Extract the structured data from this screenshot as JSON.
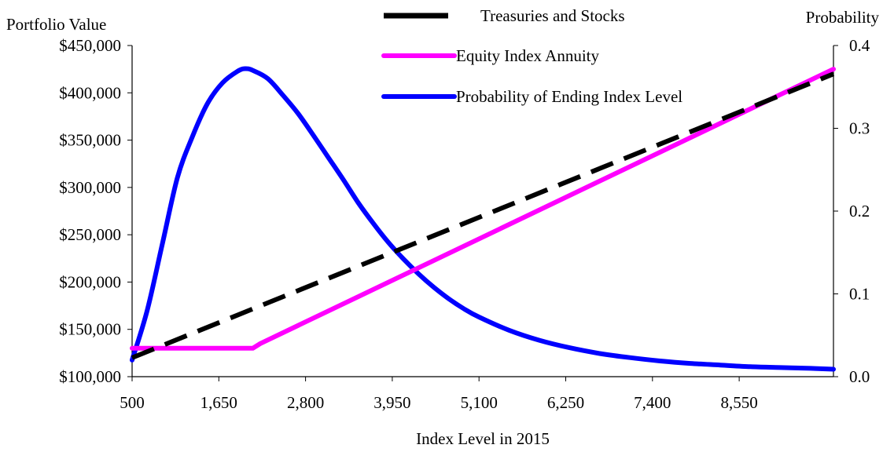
{
  "chart_data": {
    "type": "line",
    "xlabel": "Index Level in 2015",
    "ylabel_left": "Portfolio Value",
    "ylabel_right": "Probability",
    "x_ticks": [
      "500",
      "1,650",
      "2,800",
      "3,950",
      "5,100",
      "6,250",
      "7,400",
      "8,550"
    ],
    "x_tick_values": [
      500,
      1650,
      2800,
      3950,
      5100,
      6250,
      7400,
      8550
    ],
    "xlim": [
      500,
      9800
    ],
    "y_left_ticks": [
      "$100,000",
      "$150,000",
      "$200,000",
      "$250,000",
      "$300,000",
      "$350,000",
      "$400,000",
      "$450,000"
    ],
    "y_left_tick_values": [
      100000,
      150000,
      200000,
      250000,
      300000,
      350000,
      400000,
      450000
    ],
    "ylim_left": [
      100000,
      450000
    ],
    "y_right_ticks": [
      "0.0",
      "0.1",
      "0.2",
      "0.3",
      "0.4"
    ],
    "y_right_tick_values": [
      0,
      0.1,
      0.2,
      0.3,
      0.4
    ],
    "ylim_right": [
      0,
      0.4
    ],
    "grid": false,
    "legend_position": "top-center",
    "series": [
      {
        "name": "Treasuries and Stocks",
        "axis": "left",
        "color": "#000000",
        "style": "dashed",
        "x": [
          500,
          9800
        ],
        "y": [
          120000,
          420000
        ]
      },
      {
        "name": "Equity Index Annuity",
        "axis": "left",
        "color": "#ff00ff",
        "style": "solid",
        "x": [
          500,
          2100,
          2200,
          9800
        ],
        "y": [
          130000,
          130000,
          135000,
          425000
        ]
      },
      {
        "name": "Probability of Ending Index Level",
        "axis": "right",
        "color": "#0000ff",
        "style": "solid",
        "x": [
          500,
          700,
          900,
          1100,
          1300,
          1500,
          1700,
          1900,
          2000,
          2100,
          2300,
          2500,
          2700,
          2900,
          3100,
          3300,
          3500,
          3700,
          3900,
          4100,
          4300,
          4500,
          4700,
          4900,
          5100,
          5500,
          5900,
          6300,
          6700,
          7100,
          7500,
          7900,
          8300,
          8700,
          9100,
          9500,
          9800
        ],
        "y": [
          0.02,
          0.08,
          0.16,
          0.24,
          0.29,
          0.33,
          0.355,
          0.369,
          0.372,
          0.37,
          0.36,
          0.34,
          0.318,
          0.292,
          0.265,
          0.238,
          0.21,
          0.185,
          0.162,
          0.142,
          0.124,
          0.108,
          0.094,
          0.082,
          0.072,
          0.056,
          0.044,
          0.035,
          0.028,
          0.023,
          0.019,
          0.016,
          0.014,
          0.012,
          0.011,
          0.01,
          0.009
        ]
      }
    ]
  }
}
